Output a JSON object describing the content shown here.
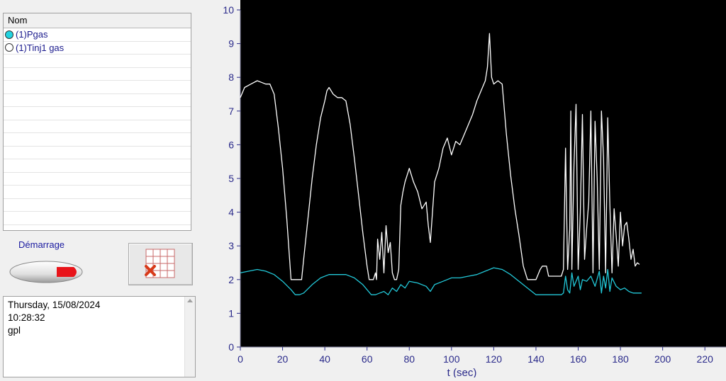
{
  "channel_list": {
    "header": "Nom",
    "items": [
      {
        "label": "(1)Pgas",
        "selected": true
      },
      {
        "label": "(1)Tinj1 gas",
        "selected": false
      }
    ],
    "empty_rows": 13
  },
  "controls": {
    "start_label": "Démarrage",
    "start_button_icon": "play-arrow-icon",
    "grid_button_icon": "grid-delete-icon"
  },
  "info": {
    "date": "Thursday, 15/08/2024",
    "time": "10:28:32",
    "note": "gpl"
  },
  "colors": {
    "plot_background": "#000000",
    "pgas_color": "#ffffff",
    "tinj_color": "#22c8d8",
    "axis_label_color": "#2a2a8a"
  },
  "chart_data": {
    "type": "line",
    "xlabel": "t (sec)",
    "ylabel": "",
    "xlim": [
      0,
      230
    ],
    "ylim": [
      0,
      10
    ],
    "xticks": [
      0,
      20,
      40,
      60,
      80,
      100,
      120,
      140,
      160,
      180,
      200,
      220
    ],
    "yticks": [
      0,
      1,
      2,
      3,
      4,
      5,
      6,
      7,
      8,
      9,
      10
    ],
    "grid": false,
    "series": [
      {
        "name": "(1)Pgas",
        "color": "#ffffff",
        "x": [
          0,
          2,
          5,
          8,
          10,
          12,
          14,
          16,
          18,
          20,
          22,
          23,
          24,
          26,
          28,
          29,
          30,
          32,
          34,
          36,
          38,
          40,
          41,
          42,
          44,
          46,
          48,
          50,
          52,
          54,
          56,
          58,
          60,
          61,
          62,
          63,
          64,
          64.5,
          65,
          66,
          67,
          68,
          69,
          70,
          71,
          72,
          73,
          74,
          75,
          76,
          77,
          78,
          80,
          82,
          84,
          86,
          88,
          89,
          90,
          92,
          94,
          96,
          98,
          100,
          102,
          104,
          106,
          108,
          110,
          112,
          114,
          116,
          117,
          118,
          119,
          120,
          122,
          124,
          126,
          128,
          130,
          132,
          134,
          136,
          137,
          138,
          140,
          142,
          143,
          144,
          145,
          146,
          148,
          150,
          152,
          153,
          154,
          155,
          156,
          156.5,
          157,
          158,
          159,
          160,
          161,
          162,
          163,
          164,
          165,
          166,
          167,
          168,
          169,
          170,
          171,
          172,
          173,
          174,
          175,
          176,
          177,
          178,
          179,
          180,
          181,
          182,
          183,
          184,
          185,
          186,
          187,
          188,
          189
        ],
        "y": [
          7.4,
          7.7,
          7.8,
          7.9,
          7.85,
          7.8,
          7.8,
          7.5,
          6.5,
          5.3,
          3.8,
          2.9,
          2.0,
          2.0,
          2.0,
          2.0,
          2.6,
          3.8,
          5.0,
          6.0,
          6.8,
          7.3,
          7.6,
          7.7,
          7.5,
          7.4,
          7.4,
          7.3,
          6.6,
          5.6,
          4.5,
          3.4,
          2.4,
          2.0,
          2.0,
          2.0,
          2.2,
          2.0,
          3.2,
          2.6,
          3.4,
          2.2,
          3.6,
          2.8,
          3.1,
          2.2,
          2.0,
          2.0,
          2.3,
          4.2,
          4.6,
          4.9,
          5.3,
          4.9,
          4.6,
          4.1,
          4.3,
          3.6,
          3.1,
          4.9,
          5.3,
          5.9,
          6.2,
          5.7,
          6.1,
          6.0,
          6.3,
          6.6,
          6.9,
          7.3,
          7.6,
          7.9,
          8.3,
          9.3,
          8.0,
          7.8,
          7.9,
          7.8,
          6.3,
          5.1,
          4.1,
          3.3,
          2.4,
          2.0,
          2.0,
          2.0,
          2.0,
          2.3,
          2.4,
          2.4,
          2.4,
          2.1,
          2.1,
          2.1,
          2.1,
          2.3,
          5.9,
          2.3,
          3.5,
          7.0,
          2.3,
          5.4,
          7.2,
          2.3,
          4.0,
          6.9,
          2.6,
          3.5,
          4.3,
          7.0,
          2.2,
          6.7,
          5.0,
          2.3,
          7.0,
          5.6,
          2.2,
          6.8,
          4.2,
          2.2,
          4.1,
          3.3,
          2.4,
          4.0,
          3.0,
          3.6,
          3.7,
          3.2,
          2.6,
          2.9,
          2.4,
          2.5,
          2.45
        ]
      },
      {
        "name": "(1)Tinj1 gas",
        "color": "#22c8d8",
        "x": [
          0,
          4,
          8,
          12,
          16,
          20,
          24,
          26,
          28,
          30,
          34,
          38,
          42,
          46,
          50,
          54,
          58,
          60,
          62,
          64,
          66,
          68,
          70,
          72,
          74,
          76,
          78,
          80,
          84,
          88,
          90,
          92,
          96,
          100,
          104,
          108,
          112,
          116,
          120,
          124,
          128,
          132,
          136,
          140,
          144,
          148,
          152,
          153,
          154,
          155,
          156,
          157,
          158,
          160,
          161,
          162,
          164,
          166,
          168,
          170,
          171,
          172,
          173,
          174,
          175,
          176,
          178,
          180,
          182,
          184,
          186,
          188,
          190
        ],
        "y": [
          2.2,
          2.25,
          2.3,
          2.25,
          2.15,
          1.95,
          1.7,
          1.55,
          1.55,
          1.6,
          1.85,
          2.05,
          2.15,
          2.15,
          2.15,
          2.05,
          1.85,
          1.7,
          1.55,
          1.55,
          1.6,
          1.65,
          1.55,
          1.75,
          1.65,
          1.85,
          1.75,
          1.95,
          1.9,
          1.8,
          1.65,
          1.85,
          1.95,
          2.05,
          2.05,
          2.1,
          2.15,
          2.25,
          2.35,
          2.3,
          2.15,
          1.95,
          1.75,
          1.55,
          1.55,
          1.55,
          1.55,
          1.6,
          2.1,
          1.7,
          1.6,
          2.2,
          1.8,
          2.1,
          1.7,
          2.0,
          1.95,
          2.1,
          1.8,
          2.25,
          1.6,
          2.1,
          1.75,
          2.3,
          1.65,
          2.05,
          1.8,
          1.7,
          1.75,
          1.65,
          1.6,
          1.6,
          1.6
        ]
      }
    ]
  }
}
